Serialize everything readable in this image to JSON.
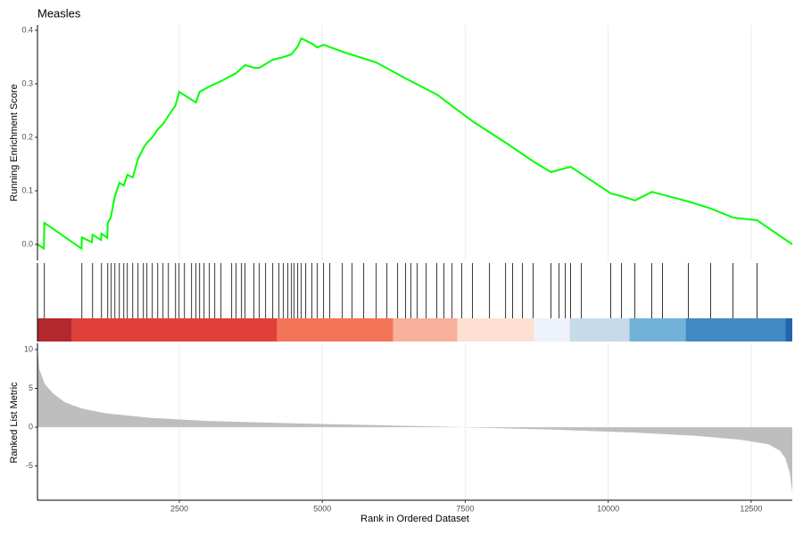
{
  "chart_data": [
    {
      "type": "line",
      "title": "Measles",
      "y_label": "Running Enrichment Score",
      "color": "#00ff00",
      "x": [
        19,
        130,
        140,
        790,
        796,
        970,
        983,
        1130,
        1139,
        1240,
        1248,
        1300,
        1373,
        1451,
        1529,
        1591,
        1685,
        1778,
        1872,
        1934,
        2028,
        2122,
        2215,
        2309,
        2434,
        2496,
        2790,
        2855,
        3026,
        3229,
        3494,
        3650,
        3806,
        3900,
        4134,
        4321,
        4462,
        4571,
        4633,
        4820,
        4914,
        5023,
        5351,
        5944,
        6458,
        7004,
        7628,
        8206,
        8689,
        9001,
        9344,
        10046,
        10234,
        10468,
        10764,
        11404,
        11794,
        12184,
        12605,
        13220
      ],
      "values": [
        0,
        -0.008,
        0.04,
        -0.008,
        0.013,
        0.004,
        0.018,
        0.008,
        0.02,
        0.012,
        0.04,
        0.05,
        0.09,
        0.115,
        0.11,
        0.13,
        0.125,
        0.16,
        0.18,
        0.19,
        0.2,
        0.215,
        0.225,
        0.24,
        0.26,
        0.285,
        0.265,
        0.285,
        0.295,
        0.305,
        0.32,
        0.335,
        0.33,
        0.33,
        0.345,
        0.35,
        0.355,
        0.37,
        0.385,
        0.375,
        0.368,
        0.373,
        0.36,
        0.34,
        0.31,
        0.28,
        0.23,
        0.19,
        0.155,
        0.135,
        0.145,
        0.095,
        0.09,
        0.082,
        0.098,
        0.08,
        0.067,
        0.05,
        0.045,
        0
      ],
      "xlim": [
        19,
        13220
      ],
      "ylim": [
        -0.03,
        0.41
      ],
      "yticks": [
        {
          "value": 0,
          "label": "0.0"
        },
        0.1,
        0.2,
        0.3,
        0.4
      ],
      "grid": true
    },
    {
      "type": "rug",
      "xlim": [
        19,
        13220
      ],
      "hits": [
        140,
        796,
        983,
        1139,
        1248,
        1310,
        1373,
        1451,
        1529,
        1591,
        1685,
        1778,
        1872,
        1934,
        2028,
        2122,
        2215,
        2309,
        2434,
        2496,
        2590,
        2714,
        2792,
        2855,
        2933,
        3026,
        3120,
        3229,
        3416,
        3494,
        3588,
        3650,
        3806,
        3900,
        4009,
        4134,
        4243,
        4321,
        4399,
        4462,
        4508,
        4571,
        4633,
        4711,
        4820,
        4914,
        5023,
        5132,
        5351,
        5522,
        5725,
        5944,
        6131,
        6318,
        6458,
        6552,
        6661,
        6817,
        7004,
        7129,
        7270,
        7441,
        7628,
        7925,
        8206,
        8330,
        8502,
        8689,
        9001,
        9142,
        9251,
        9344,
        9532,
        10046,
        10234,
        10468,
        10764,
        10951,
        11404,
        11794,
        12184,
        12605
      ],
      "band": [
        {
          "start": 19,
          "end": 624,
          "color": "#b2282c"
        },
        {
          "start": 624,
          "end": 4212,
          "color": "#e0403a"
        },
        {
          "start": 4212,
          "end": 6240,
          "color": "#f4745a"
        },
        {
          "start": 6240,
          "end": 7363,
          "color": "#f8b19a"
        },
        {
          "start": 7363,
          "end": 8704,
          "color": "#fde0d2"
        },
        {
          "start": 8704,
          "end": 9328,
          "color": "#eef2fa"
        },
        {
          "start": 9328,
          "end": 10373,
          "color": "#c6dbea"
        },
        {
          "start": 10373,
          "end": 11356,
          "color": "#73b2d8"
        },
        {
          "start": 11356,
          "end": 13103,
          "color": "#4189c4"
        },
        {
          "start": 13103,
          "end": 13220,
          "color": "#2166ac"
        }
      ]
    },
    {
      "type": "area",
      "x_label": "Rank in Ordered Dataset",
      "y_label": "Ranked List Metric",
      "color": "#bebebe",
      "x": [
        19,
        50,
        150,
        300,
        500,
        800,
        1200,
        2000,
        3000,
        4500,
        6000,
        7400,
        7500,
        9000,
        10500,
        11500,
        12300,
        12800,
        13000,
        13100,
        13180,
        13220
      ],
      "values": [
        10.5,
        7.5,
        5.5,
        4.3,
        3.2,
        2.4,
        1.8,
        1.2,
        0.8,
        0.5,
        0.25,
        0.02,
        -0.02,
        -0.3,
        -0.7,
        -1.1,
        -1.6,
        -2.2,
        -3,
        -4,
        -6,
        -8.5
      ],
      "xlim": [
        19,
        13220
      ],
      "ylim": [
        -9.4,
        10.8
      ],
      "xticks": [
        2500,
        5000,
        7500,
        10000,
        12500
      ],
      "yticks": [
        -5,
        0,
        5,
        10
      ],
      "grid": true
    }
  ]
}
